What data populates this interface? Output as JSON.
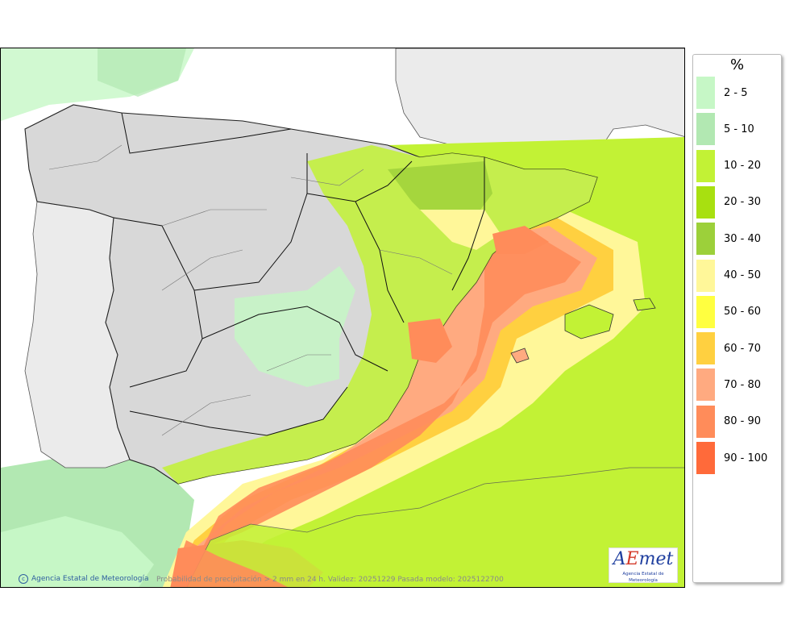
{
  "legend": {
    "unit": "%",
    "items": [
      {
        "label": "2 - 5",
        "color": "#c6f7c6"
      },
      {
        "label": "5 - 10",
        "color": "#b2e8b2"
      },
      {
        "label": "10 - 20",
        "color": "#c2f235"
      },
      {
        "label": "20 - 30",
        "color": "#a8e010"
      },
      {
        "label": "30 - 40",
        "color": "#9cd03a"
      },
      {
        "label": "40 - 50",
        "color": "#fff799"
      },
      {
        "label": "50 - 60",
        "color": "#ffff40"
      },
      {
        "label": "60 - 70",
        "color": "#ffd040"
      },
      {
        "label": "70 - 80",
        "color": "#ffaa80"
      },
      {
        "label": "80 - 90",
        "color": "#ff8c5a"
      },
      {
        "label": "90 - 100",
        "color": "#ff6a3a"
      }
    ]
  },
  "footer": {
    "credit": "Agencia Estatal de Meteorología",
    "caption": "Probabilidad de precipitación > 2 mm en 24 h. Validez: 20251229 Pasada modelo: 2025122700"
  },
  "logo": {
    "name": "AEmet",
    "subtitle": "Agencia Estatal de Meteorología"
  }
}
